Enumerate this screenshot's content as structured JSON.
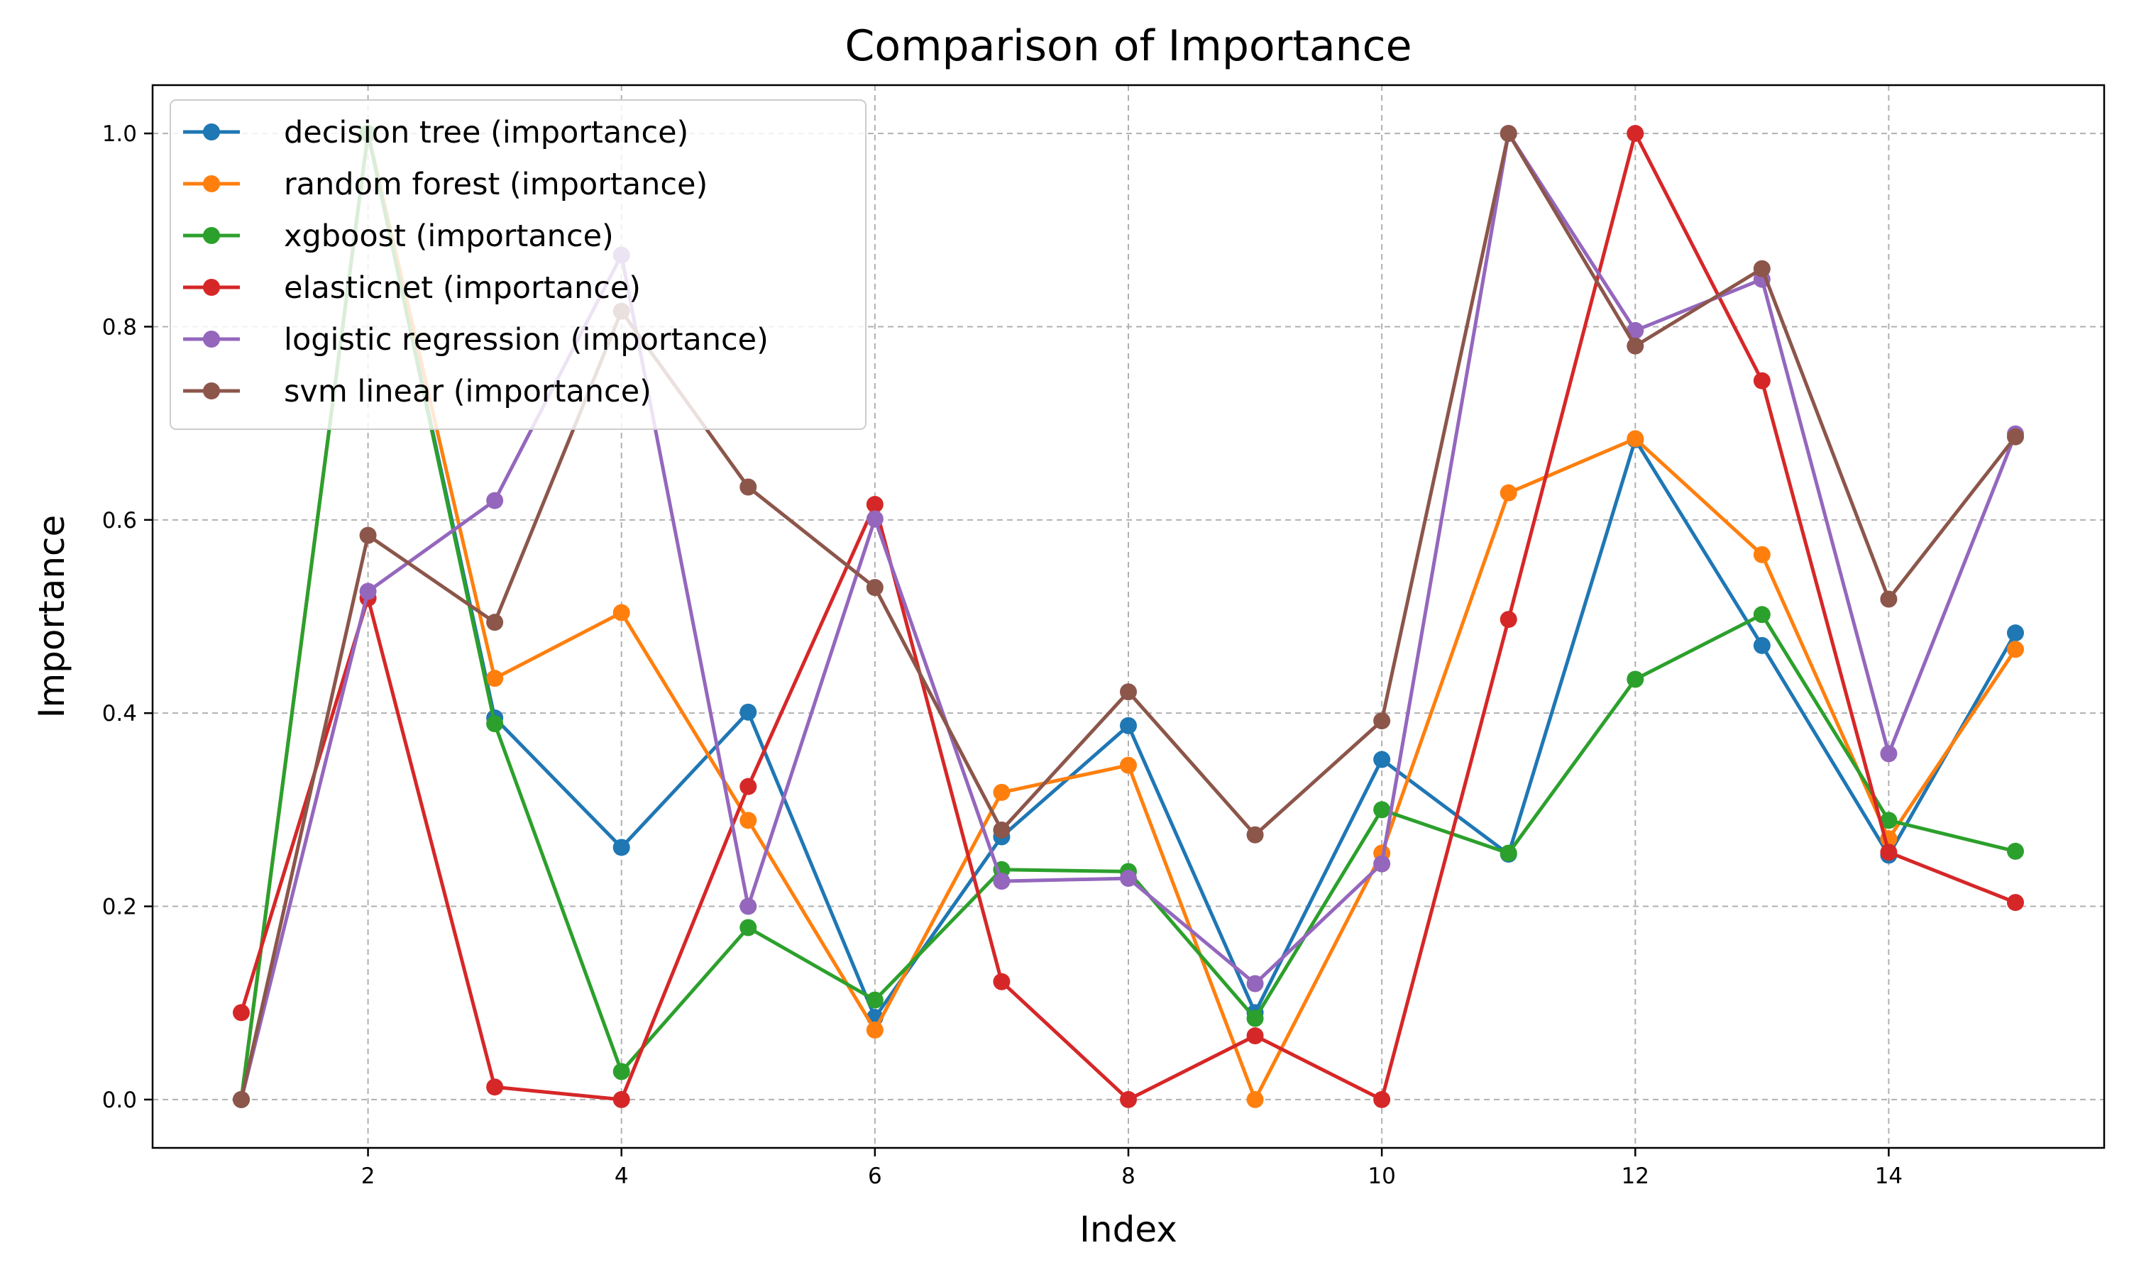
{
  "chart_data": {
    "type": "line",
    "title": "Comparison of Importance",
    "xlabel": "Index",
    "ylabel": "Importance",
    "xlim": [
      0.3,
      15.7
    ],
    "ylim": [
      -0.05,
      1.05
    ],
    "xticks": [
      2,
      4,
      6,
      8,
      10,
      12,
      14
    ],
    "yticks": [
      0.0,
      0.2,
      0.4,
      0.6,
      0.8,
      1.0
    ],
    "ytick_labels": [
      "0.0",
      "0.2",
      "0.4",
      "0.6",
      "0.8",
      "1.0"
    ],
    "grid": true,
    "legend_position": "upper-left",
    "x": [
      1,
      2,
      3,
      4,
      5,
      6,
      7,
      8,
      9,
      10,
      11,
      12,
      13,
      14,
      15
    ],
    "series": [
      {
        "name": "decision tree (importance)",
        "color": "#1f77b4",
        "values": [
          0.0,
          1.0,
          0.395,
          0.261,
          0.401,
          0.085,
          0.272,
          0.387,
          0.09,
          0.352,
          0.254,
          0.683,
          0.47,
          0.253,
          0.483
        ]
      },
      {
        "name": "random forest (importance)",
        "color": "#ff7f0e",
        "values": [
          0.0,
          1.0,
          0.436,
          0.504,
          0.289,
          0.072,
          0.318,
          0.346,
          0.0,
          0.255,
          0.628,
          0.684,
          0.564,
          0.27,
          0.466
        ]
      },
      {
        "name": "xgboost (importance)",
        "color": "#2ca02c",
        "values": [
          0.0,
          1.0,
          0.389,
          0.029,
          0.178,
          0.103,
          0.238,
          0.236,
          0.084,
          0.3,
          0.255,
          0.435,
          0.502,
          0.289,
          0.257
        ]
      },
      {
        "name": "elasticnet (importance)",
        "color": "#d62728",
        "values": [
          0.09,
          0.519,
          0.013,
          0.0,
          0.324,
          0.616,
          0.122,
          0.0,
          0.066,
          0.0,
          0.497,
          1.0,
          0.744,
          0.256,
          0.204
        ]
      },
      {
        "name": "logistic regression (importance)",
        "color": "#9467bd",
        "values": [
          0.0,
          0.526,
          0.62,
          0.874,
          0.2,
          0.601,
          0.226,
          0.229,
          0.12,
          0.244,
          1.0,
          0.796,
          0.849,
          0.358,
          0.689
        ]
      },
      {
        "name": "svm linear (importance)",
        "color": "#8c564b",
        "values": [
          0.0,
          0.584,
          0.494,
          0.816,
          0.634,
          0.53,
          0.279,
          0.422,
          0.274,
          0.392,
          1.0,
          0.78,
          0.86,
          0.518,
          0.686
        ]
      }
    ]
  }
}
